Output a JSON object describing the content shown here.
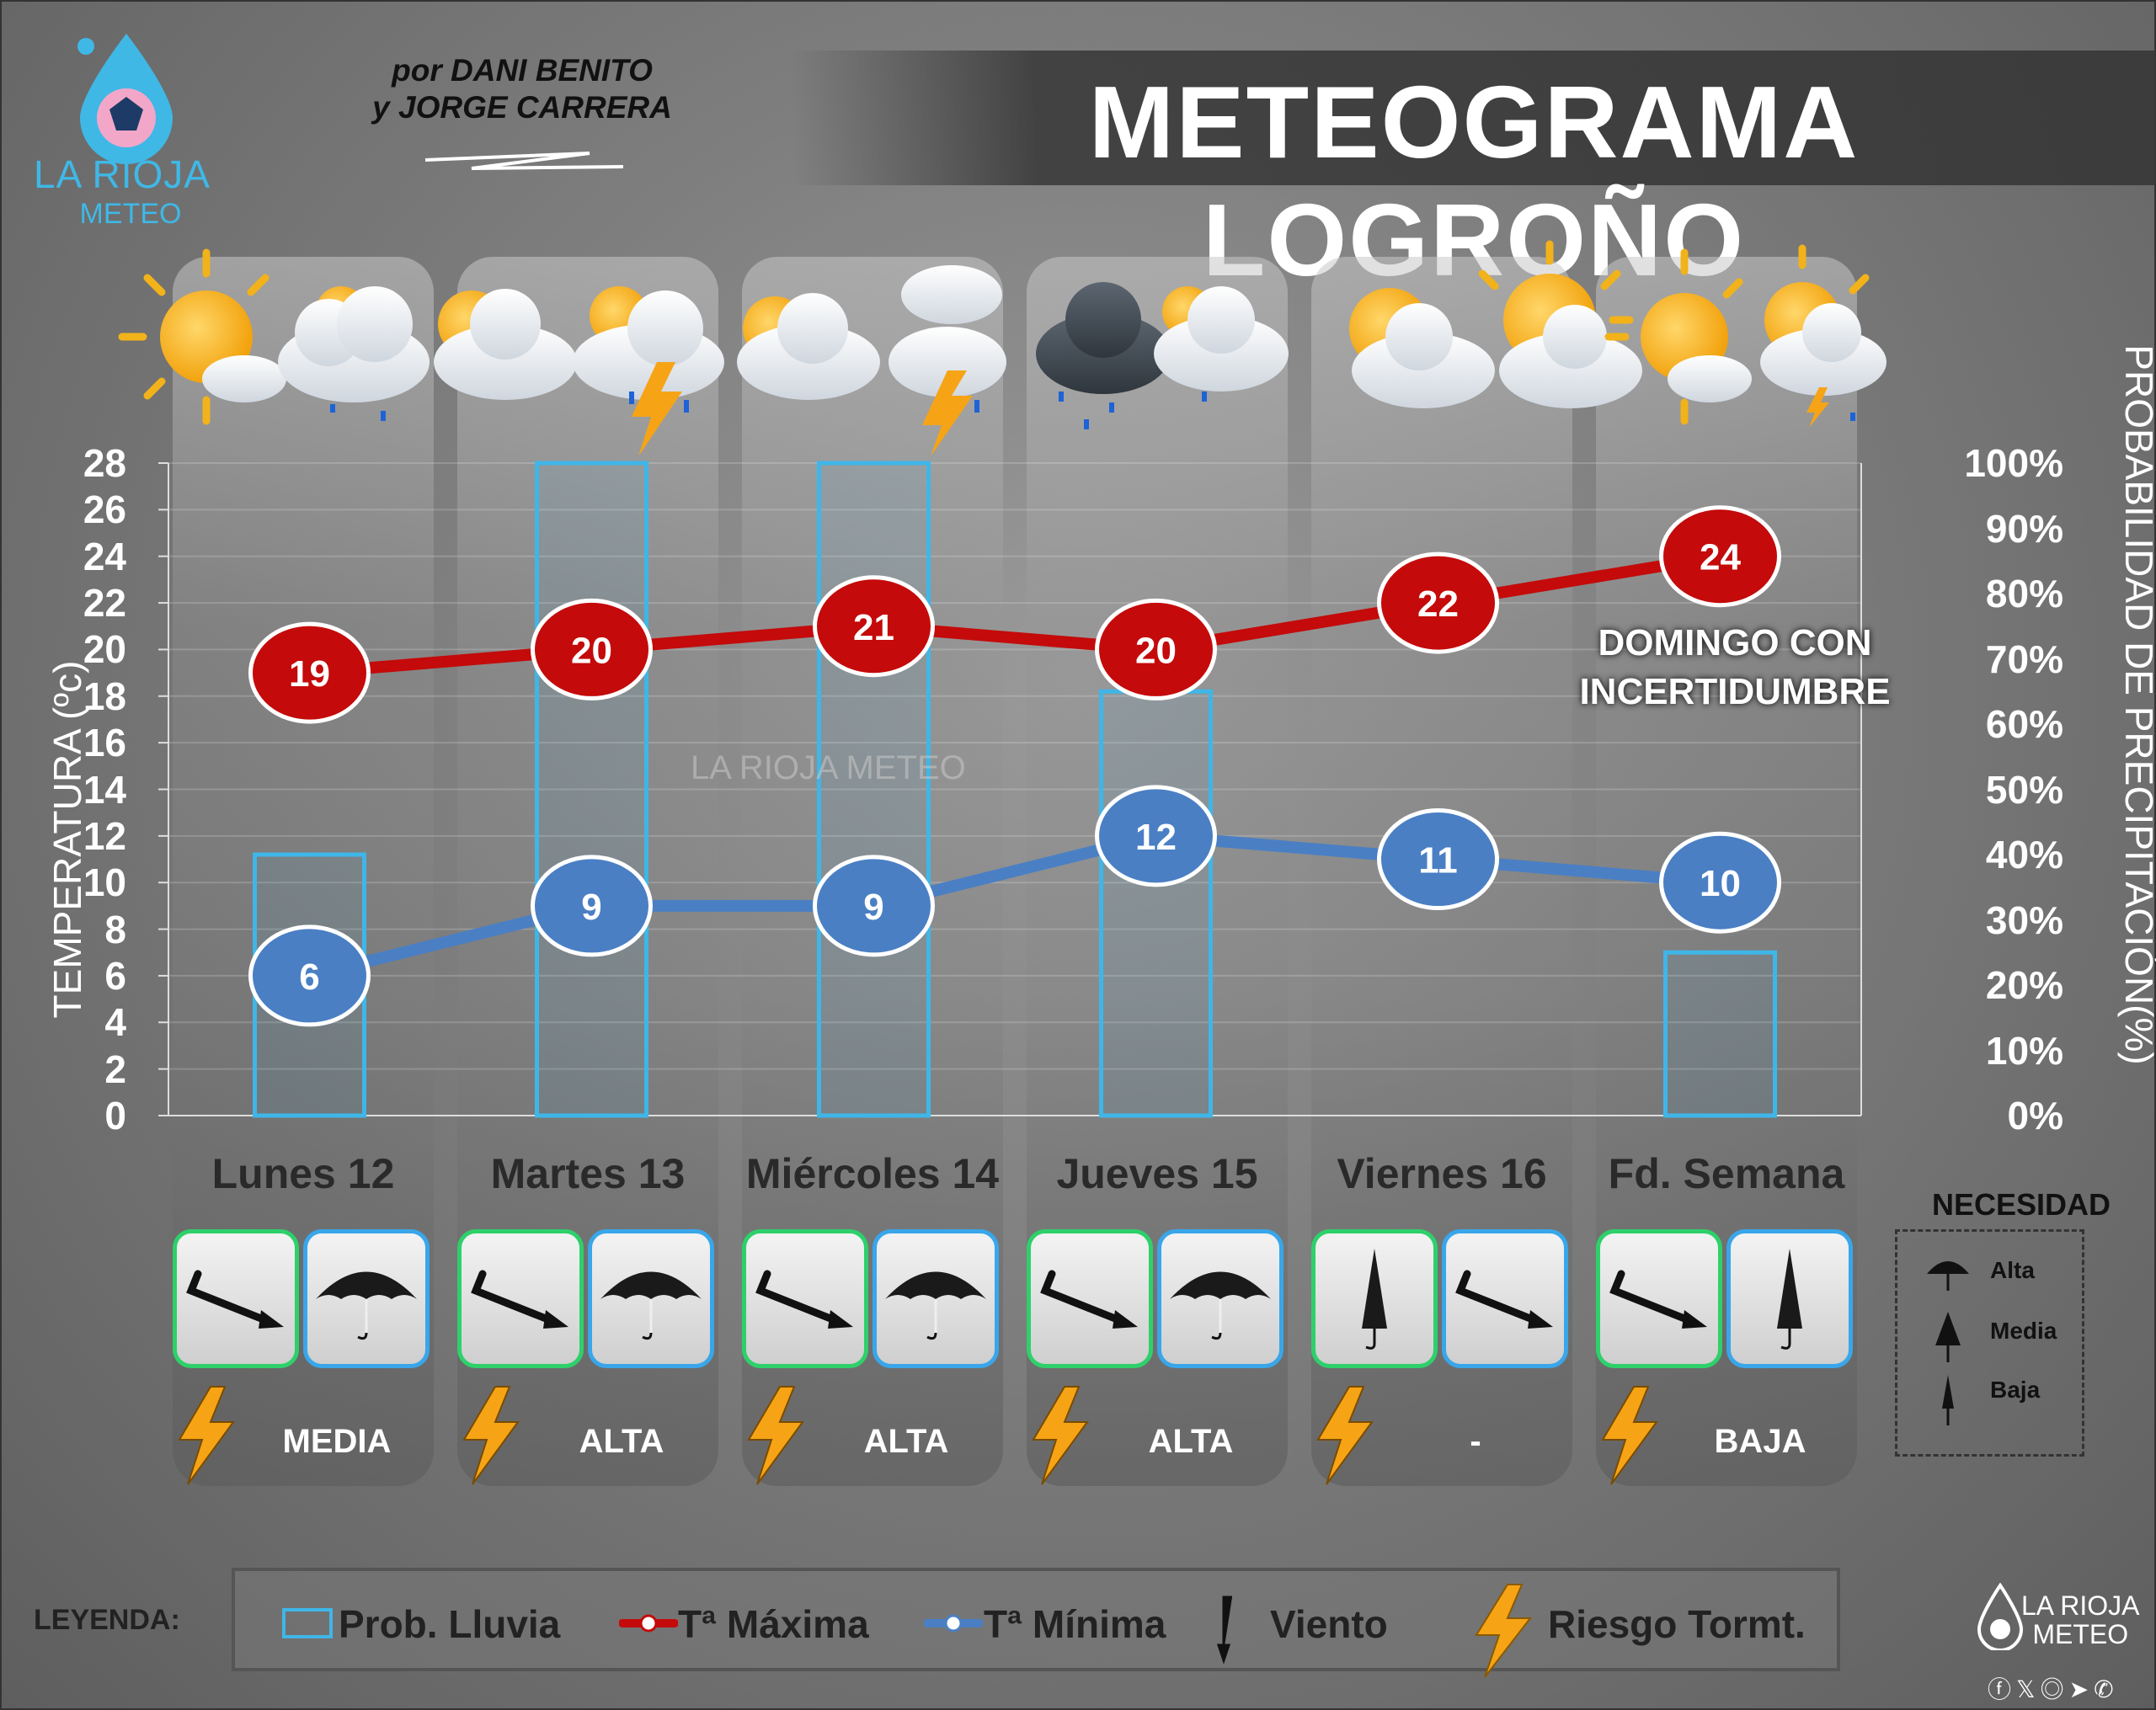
{
  "header": {
    "title": "METEOGRAMA LOGROÑO",
    "authors_line1": "por DANI BENITO",
    "authors_line2": "y JORGE CARRERA",
    "logo_line1": "LA RIOJA",
    "logo_line2": "METEO"
  },
  "note": {
    "line1": "DOMINGO CON",
    "line2": "INCERTIDUMBRE"
  },
  "watermark": "LA RIOJA METEO",
  "chart_data": {
    "type": "bar",
    "categories": [
      "Lunes 12",
      "Martes 13",
      "Miércoles 14",
      "Jueves 15",
      "Viernes 16",
      "Fd. Semana"
    ],
    "series": [
      {
        "name": "Prob. Lluvia",
        "axis": "right",
        "values": [
          40,
          100,
          100,
          65,
          0,
          25
        ]
      },
      {
        "name": "Tª Máxima",
        "type": "line",
        "axis": "left",
        "values": [
          19,
          20,
          21,
          20,
          22,
          24
        ]
      },
      {
        "name": "Tª Mínima",
        "type": "line",
        "axis": "left",
        "values": [
          6,
          9,
          9,
          12,
          11,
          10
        ]
      }
    ],
    "ylabel": "TEMPERATURA (ºc)",
    "ylabel_right": "PROBABILIDAD DE PRECIPITACIÓN(%)",
    "ylim": [
      0,
      28
    ],
    "ylim_right": [
      0,
      100
    ],
    "yticks": [
      "0",
      "2",
      "4",
      "6",
      "8",
      "10",
      "12",
      "14",
      "16",
      "18",
      "20",
      "22",
      "24",
      "26",
      "28"
    ],
    "yticks_right": [
      "0%",
      "10%",
      "20%",
      "30%",
      "40%",
      "50%",
      "60%",
      "70%",
      "80%",
      "90%",
      "100%"
    ],
    "colors": {
      "rain": "#3fb6e8",
      "max": "#c40a0a",
      "min": "#4a7fc4"
    }
  },
  "days": [
    {
      "label": "Lunes 12",
      "wind": "arrow",
      "umbrella": "open",
      "risk": "MEDIA"
    },
    {
      "label": "Martes 13",
      "wind": "arrow",
      "umbrella": "open",
      "risk": "ALTA"
    },
    {
      "label": "Miércoles 14",
      "wind": "arrow",
      "umbrella": "open",
      "risk": "ALTA"
    },
    {
      "label": "Jueves 15",
      "wind": "arrow",
      "umbrella": "open",
      "risk": "ALTA"
    },
    {
      "label": "Viernes 16",
      "wind": "closed-umbrella",
      "umbrella": "arrow",
      "risk": "-"
    },
    {
      "label": "Fd. Semana",
      "wind": "arrow",
      "umbrella": "closed",
      "risk": "BAJA"
    }
  ],
  "necesidad": {
    "title": "NECESIDAD",
    "items": [
      "Alta",
      "Media",
      "Baja"
    ]
  },
  "legend": {
    "label": "LEYENDA:",
    "rain": "Prob. Lluvia",
    "max": "Tª Máxima",
    "min": "Tª Mínima",
    "wind": "Viento",
    "storm": "Riesgo Tormt."
  },
  "footer": {
    "line1": "LA RIOJA",
    "line2": "METEO"
  }
}
